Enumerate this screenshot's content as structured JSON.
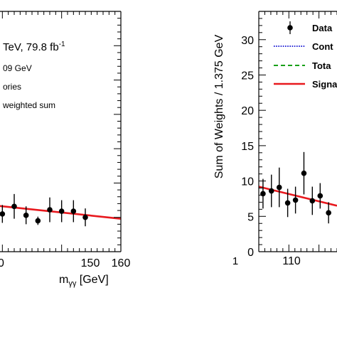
{
  "chart_data": [
    {
      "type": "scatter",
      "xlabel": "m",
      "xlabel_sub": "γγ",
      "xlabel_unit": " [GeV]",
      "xlim": [
        139,
        160
      ],
      "ylim": [
        0,
        35
      ],
      "x_ticks": [
        "150",
        "160"
      ],
      "x_tick_partial": "0",
      "annotations": [
        "TeV, 79.8 fb",
        "-1",
        "09 GeV",
        "ories",
        "weighted sum"
      ],
      "series": [
        {
          "points": [
            {
              "x": 140,
              "y": 5.5,
              "err": 1.3
            },
            {
              "x": 142,
              "y": 6.6,
              "err": 1.8
            },
            {
              "x": 144,
              "y": 5.3,
              "err": 1.3
            },
            {
              "x": 146,
              "y": 4.5,
              "err": 0.6
            },
            {
              "x": 148,
              "y": 6.1,
              "err": 1.8
            },
            {
              "x": 150,
              "y": 5.9,
              "err": 1.6
            },
            {
              "x": 152,
              "y": 5.9,
              "err": 1.6
            },
            {
              "x": 154,
              "y": 5.0,
              "err": 1.3
            }
          ]
        }
      ],
      "fit_line": {
        "x": [
          139,
          160
        ],
        "y": [
          6.7,
          4.8
        ],
        "color": "#e8191e"
      }
    },
    {
      "type": "scatter",
      "ylabel": "Sum of Weights /  1.375 GeV",
      "xlim": [
        105,
        118
      ],
      "ylim": [
        0,
        34
      ],
      "y_ticks": [
        "0",
        "5",
        "10",
        "15",
        "20",
        "25",
        "30"
      ],
      "x_ticks": [
        "110"
      ],
      "x_tick_partial": "1",
      "legend": [
        "Data",
        "Cont",
        "Tota",
        "Signa"
      ],
      "legend_styles": [
        {
          "kind": "marker",
          "color": "#000000"
        },
        {
          "kind": "dotted",
          "color": "#2b2bd6"
        },
        {
          "kind": "dashed",
          "color": "#18a018"
        },
        {
          "kind": "solid",
          "color": "#e8191e"
        }
      ],
      "series": [
        {
          "name": "Data",
          "points": [
            {
              "x": 105.7,
              "y": 8.2,
              "err": 2.1
            },
            {
              "x": 107.1,
              "y": 8.6,
              "err": 2.3
            },
            {
              "x": 108.4,
              "y": 9.1,
              "err": 2.8
            },
            {
              "x": 109.8,
              "y": 6.9,
              "err": 2.0
            },
            {
              "x": 111.1,
              "y": 7.3,
              "err": 1.9
            },
            {
              "x": 112.5,
              "y": 11.1,
              "err": 3.0
            },
            {
              "x": 113.9,
              "y": 7.2,
              "err": 2.0
            },
            {
              "x": 115.2,
              "y": 7.9,
              "err": 1.8
            },
            {
              "x": 116.6,
              "y": 5.5,
              "err": 1.5
            }
          ]
        }
      ],
      "fit_line": {
        "x": [
          105,
          118
        ],
        "y": [
          9.2,
          6.5
        ],
        "color": "#e8191e"
      }
    }
  ]
}
